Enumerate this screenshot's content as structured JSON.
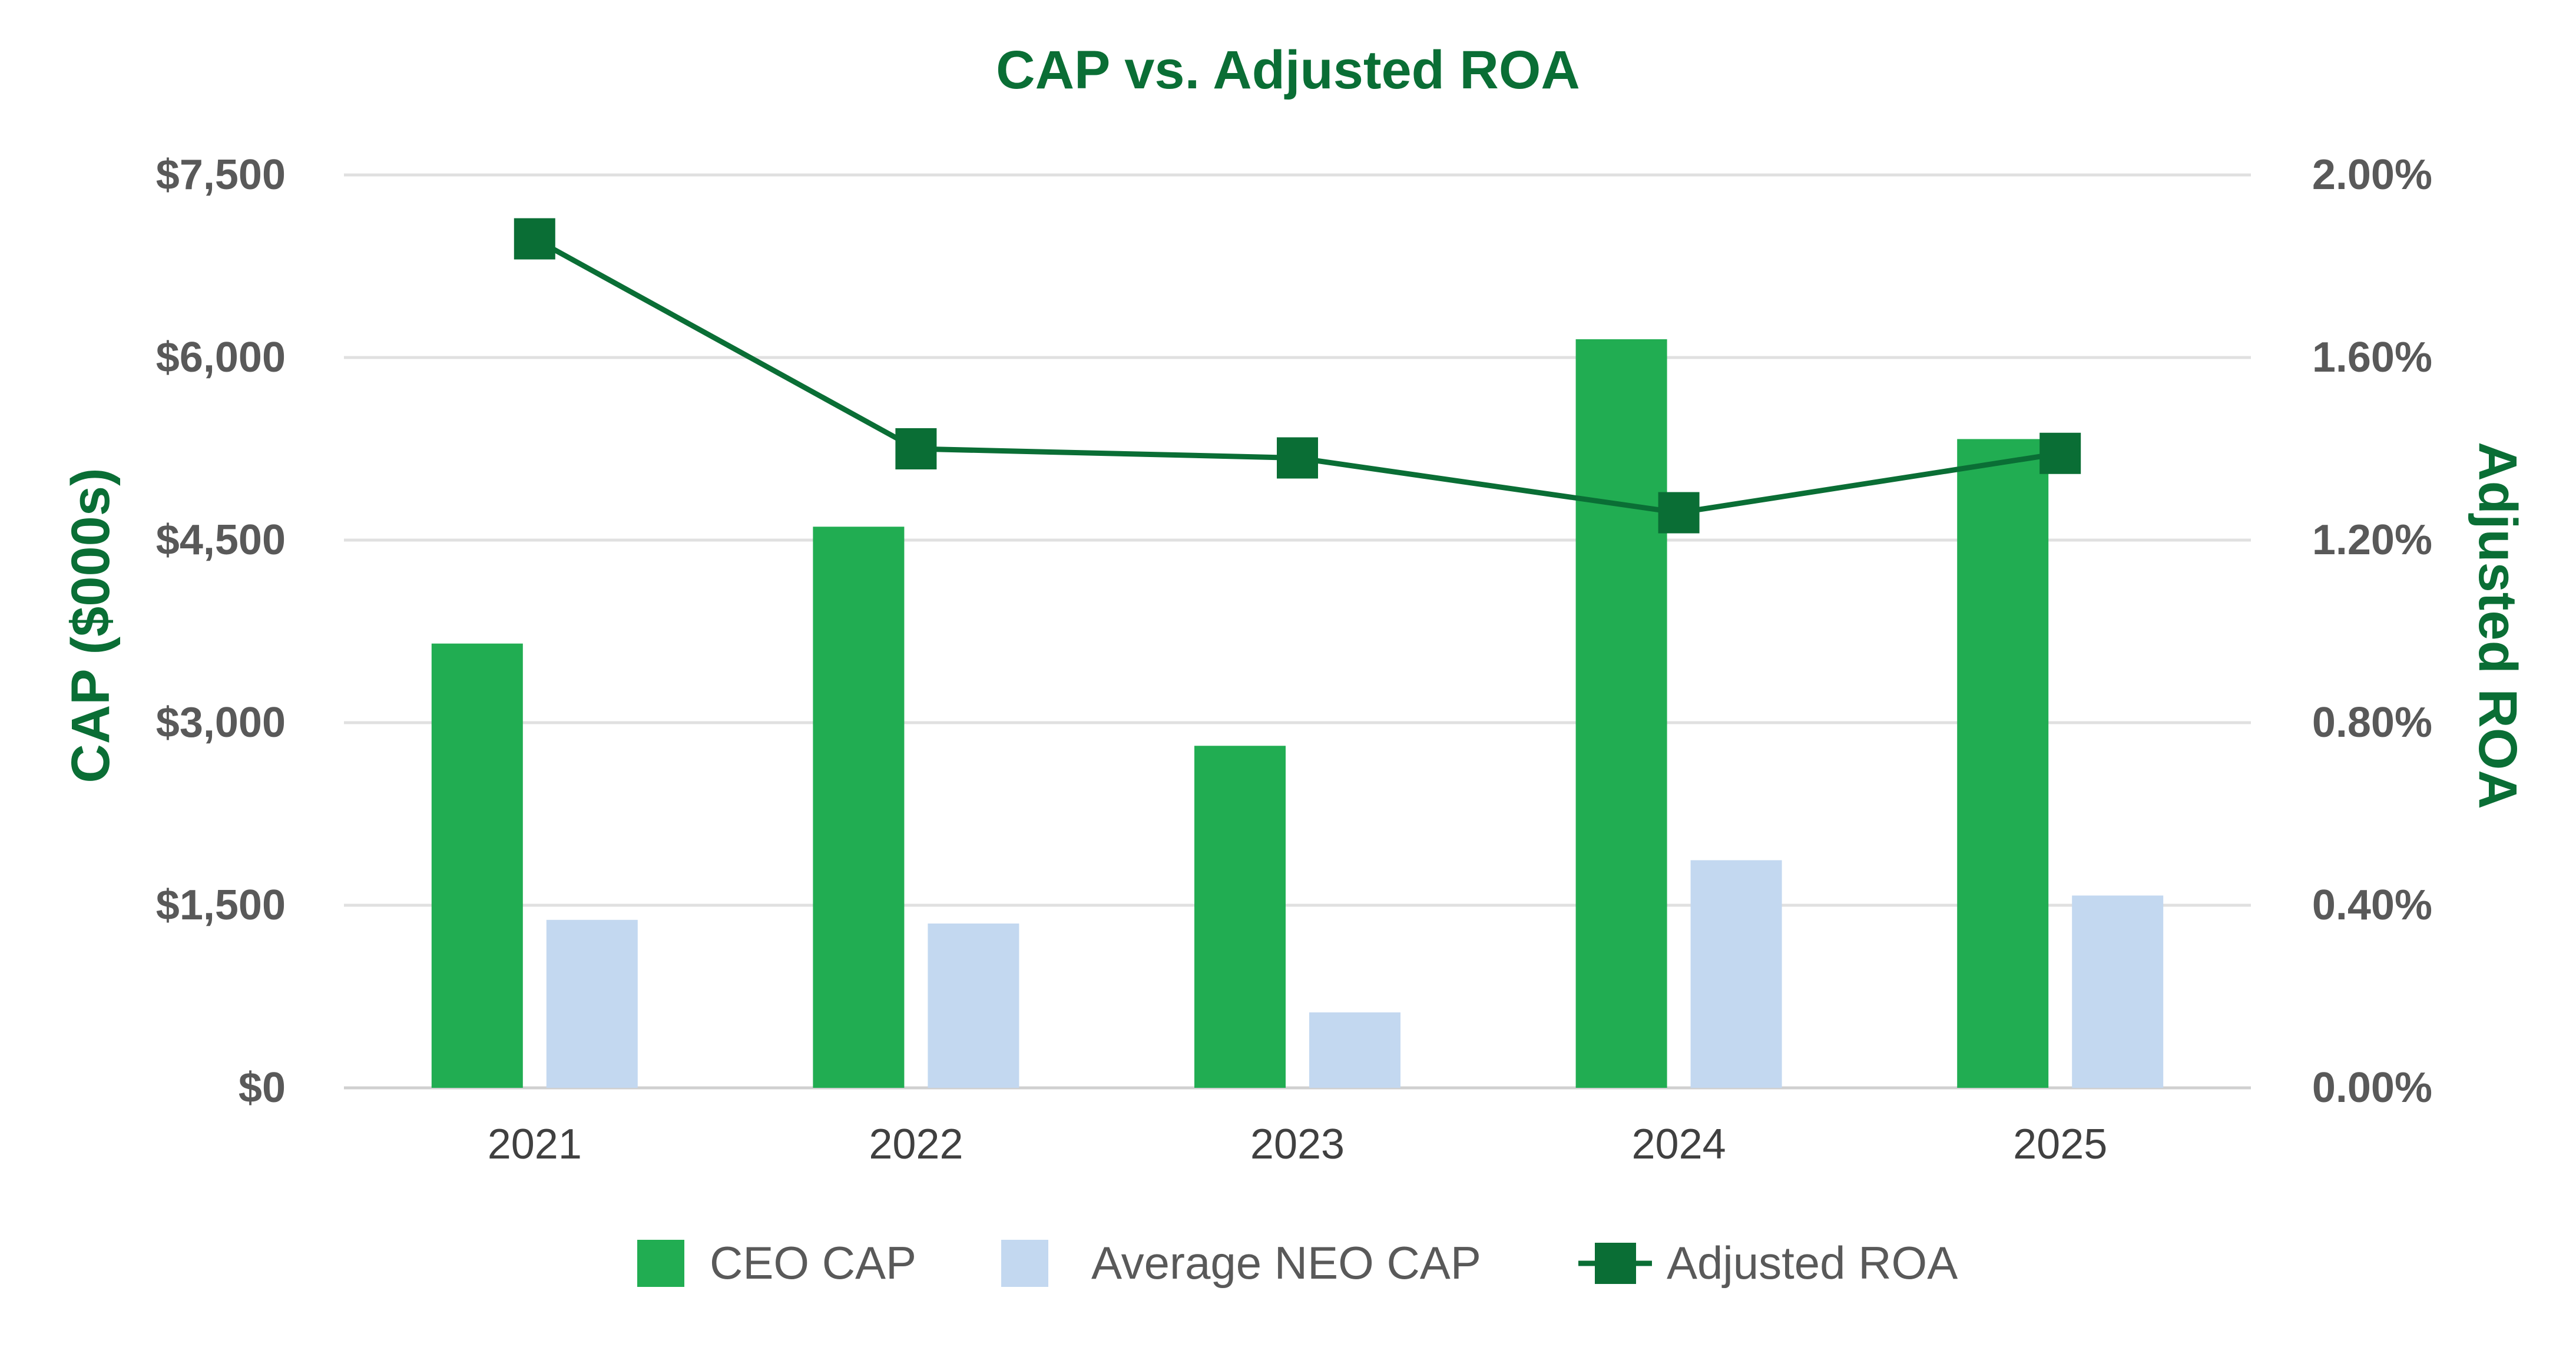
{
  "chart_data": {
    "type": "bar",
    "title": "CAP vs. Adjusted ROA",
    "categories": [
      "2021",
      "2022",
      "2023",
      "2024",
      "2025"
    ],
    "y_left": {
      "label": "CAP ($000s)",
      "ylim": [
        0,
        7500
      ],
      "ticks": [
        0,
        1500,
        3000,
        4500,
        6000,
        7500
      ],
      "tick_labels": [
        "$0",
        "$1,500",
        "$3,000",
        "$4,500",
        "$6,000",
        "$7,500"
      ]
    },
    "y_right": {
      "label": "Adjusted ROA",
      "ylim": [
        0,
        2.0
      ],
      "ticks": [
        0,
        0.4,
        0.8,
        1.2,
        1.6,
        2.0
      ],
      "tick_labels": [
        "0.00%",
        "0.40%",
        "0.80%",
        "1.20%",
        "1.60%",
        "2.00%"
      ]
    },
    "series": [
      {
        "name": "CEO CAP",
        "type": "bar",
        "axis": "left",
        "color": "#21ad52",
        "values": [
          3650,
          4610,
          2810,
          6150,
          5330
        ]
      },
      {
        "name": "Average NEO CAP",
        "type": "bar",
        "axis": "left",
        "color": "#c3d8f0",
        "values": [
          1380,
          1350,
          620,
          1870,
          1580
        ]
      },
      {
        "name": "Adjusted ROA",
        "type": "line",
        "axis": "right",
        "color": "#0a6e35",
        "marker": "square",
        "values": [
          1.86,
          1.4,
          1.38,
          1.26,
          1.39
        ]
      }
    ],
    "grid": true,
    "legend": "bottom-center"
  }
}
